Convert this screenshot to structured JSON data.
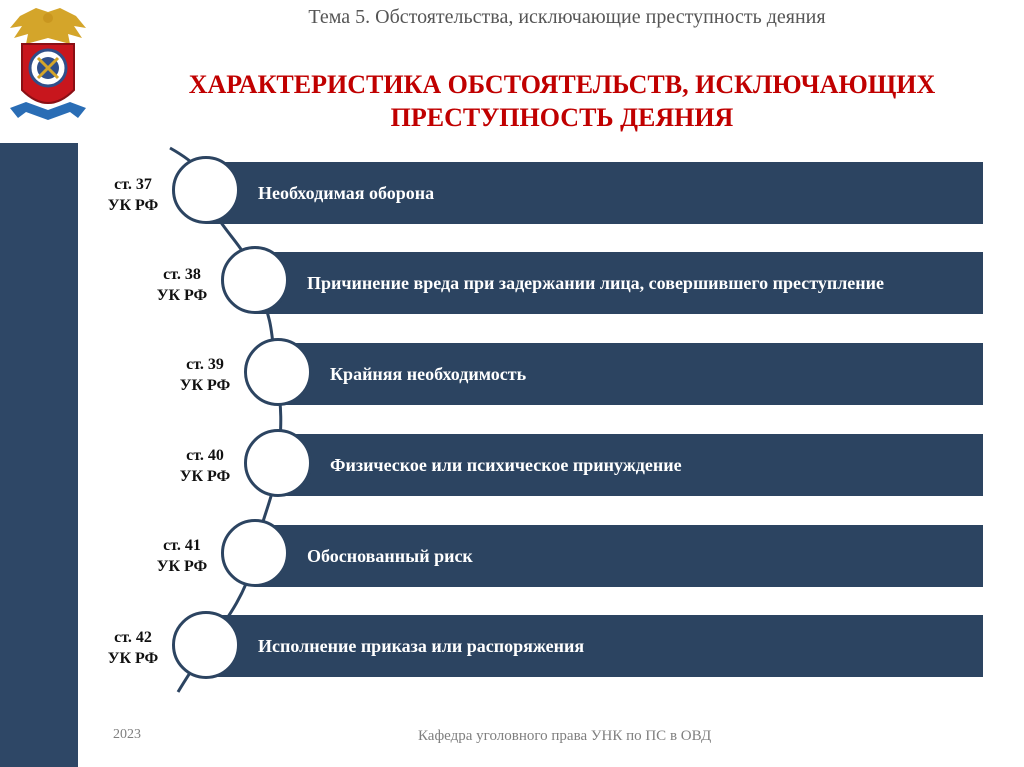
{
  "header": {
    "topic": "Тема 5. Обстоятельства, исключающие преступность деяния",
    "title_line1": "ХАРАКТЕРИСТИКА ОБСТОЯТЕЛЬСТВ, ИСКЛЮЧАЮЩИХ",
    "title_line2": "ПРЕСТУПНОСТЬ ДЕЯНИЯ"
  },
  "items": [
    {
      "article_line1": "ст. 37",
      "article_line2": "УК РФ",
      "text": "Необходимая оборона"
    },
    {
      "article_line1": "ст. 38",
      "article_line2": "УК РФ",
      "text": "Причинение вреда при задержании лица, совершившего преступление"
    },
    {
      "article_line1": "ст. 39",
      "article_line2": "УК РФ",
      "text": "Крайняя необходимость"
    },
    {
      "article_line1": "ст. 40",
      "article_line2": "УК РФ",
      "text": "Физическое или психическое принуждение"
    },
    {
      "article_line1": "ст. 41",
      "article_line2": "УК РФ",
      "text": "Обоснованный риск"
    },
    {
      "article_line1": "ст. 42",
      "article_line2": "УК РФ",
      "text": "Исполнение приказа или распоряжения"
    }
  ],
  "footer": {
    "year": "2023",
    "department": "Кафедра уголовного права УНК по ПС в ОВД"
  },
  "colors": {
    "accent_title": "#c00000",
    "bar": "#2c4461",
    "band": "#2e4766"
  },
  "icons": {
    "emblem": "emblem-icon"
  }
}
